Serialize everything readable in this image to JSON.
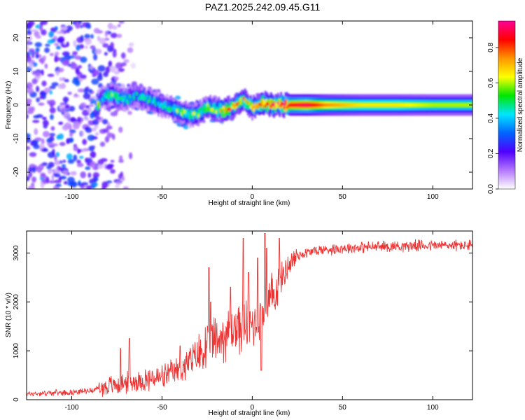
{
  "title": "PAZ1.2025.242.09.45.G11",
  "chart_data": [
    {
      "type": "heatmap",
      "title": "PAZ1.2025.242.09.45.G11",
      "xlabel": "Height of straight line (km)",
      "ylabel": "Frequency (Hz)",
      "xlim": [
        -125,
        122
      ],
      "ylim": [
        -25,
        25
      ],
      "xticks": [
        -100,
        -50,
        0,
        50,
        100
      ],
      "yticks": [
        -20,
        -10,
        0,
        10,
        20
      ],
      "grid": false,
      "colorbar": {
        "label": "Normalized spectral amplitude",
        "range": [
          0,
          0.95
        ],
        "ticks": [
          0.0,
          0.2,
          0.4,
          0.6,
          0.8
        ],
        "colors": [
          "#ffffff",
          "#b478ff",
          "#5000ff",
          "#0064ff",
          "#00e6ff",
          "#00e600",
          "#ffff00",
          "#ff9600",
          "#ff0000",
          "#ff0096"
        ]
      },
      "ridge": [
        {
          "x": -85,
          "f": 1.5,
          "a": 0.3
        },
        {
          "x": -80,
          "f": 3.0,
          "a": 0.5
        },
        {
          "x": -75,
          "f": 2.5,
          "a": 0.5
        },
        {
          "x": -70,
          "f": 1.5,
          "a": 0.45
        },
        {
          "x": -65,
          "f": 3.0,
          "a": 0.4
        },
        {
          "x": -60,
          "f": 2.0,
          "a": 0.45
        },
        {
          "x": -55,
          "f": 1.0,
          "a": 0.45
        },
        {
          "x": -50,
          "f": 0.0,
          "a": 0.4
        },
        {
          "x": -45,
          "f": -1.0,
          "a": 0.45
        },
        {
          "x": -40,
          "f": -2.0,
          "a": 0.55
        },
        {
          "x": -35,
          "f": -3.0,
          "a": 0.5
        },
        {
          "x": -30,
          "f": -2.5,
          "a": 0.5
        },
        {
          "x": -25,
          "f": -0.5,
          "a": 0.55
        },
        {
          "x": -20,
          "f": -1.5,
          "a": 0.6
        },
        {
          "x": -15,
          "f": -1.5,
          "a": 0.7
        },
        {
          "x": -10,
          "f": 0.0,
          "a": 0.65
        },
        {
          "x": -5,
          "f": 1.5,
          "a": 0.65
        },
        {
          "x": 0,
          "f": -1.0,
          "a": 0.7
        },
        {
          "x": 5,
          "f": 0.5,
          "a": 0.75
        },
        {
          "x": 10,
          "f": 0.0,
          "a": 0.8
        },
        {
          "x": 15,
          "f": 0.0,
          "a": 0.85
        },
        {
          "x": 20,
          "f": 0.0,
          "a": 0.85
        },
        {
          "x": 30,
          "f": 0.0,
          "a": 0.9
        },
        {
          "x": 40,
          "f": 0.0,
          "a": 0.75
        },
        {
          "x": 60,
          "f": 0.0,
          "a": 0.65
        },
        {
          "x": 80,
          "f": 0.0,
          "a": 0.65
        },
        {
          "x": 100,
          "f": 0.0,
          "a": 0.6
        },
        {
          "x": 122,
          "f": 0.0,
          "a": 0.6
        }
      ],
      "noise_region": {
        "x_from": -125,
        "x_to": -85,
        "f_range": [
          -25,
          25
        ],
        "a_range": [
          0.05,
          0.3
        ]
      }
    },
    {
      "type": "line",
      "xlabel": "Height of straight line (km)",
      "ylabel": "SNR (10 * v/v)",
      "xlim": [
        -125,
        122
      ],
      "ylim": [
        0,
        3450
      ],
      "xticks": [
        -100,
        -50,
        0,
        50,
        100
      ],
      "yticks": [
        0,
        1000,
        2000,
        3000
      ],
      "grid": false,
      "series": [
        {
          "name": "SNR",
          "color": "#ee3333",
          "trend": [
            {
              "x": -125,
              "y": 120
            },
            {
              "x": -110,
              "y": 140
            },
            {
              "x": -100,
              "y": 150
            },
            {
              "x": -90,
              "y": 190
            },
            {
              "x": -80,
              "y": 270
            },
            {
              "x": -70,
              "y": 350
            },
            {
              "x": -60,
              "y": 400
            },
            {
              "x": -50,
              "y": 450
            },
            {
              "x": -40,
              "y": 620
            },
            {
              "x": -30,
              "y": 900
            },
            {
              "x": -20,
              "y": 1200
            },
            {
              "x": -10,
              "y": 1450
            },
            {
              "x": 0,
              "y": 1550
            },
            {
              "x": 5,
              "y": 1700
            },
            {
              "x": 10,
              "y": 2000
            },
            {
              "x": 15,
              "y": 2400
            },
            {
              "x": 20,
              "y": 2750
            },
            {
              "x": 25,
              "y": 2950
            },
            {
              "x": 35,
              "y": 3050
            },
            {
              "x": 50,
              "y": 3100
            },
            {
              "x": 70,
              "y": 3130
            },
            {
              "x": 90,
              "y": 3150
            },
            {
              "x": 110,
              "y": 3160
            },
            {
              "x": 122,
              "y": 3150
            }
          ],
          "peaks": [
            {
              "x": -73,
              "y": 1050
            },
            {
              "x": -68,
              "y": 1250
            },
            {
              "x": -40,
              "y": 1100
            },
            {
              "x": -24,
              "y": 2700
            },
            {
              "x": -23,
              "y": 2000
            },
            {
              "x": -12,
              "y": 2300
            },
            {
              "x": -5,
              "y": 3300
            },
            {
              "x": -2,
              "y": 2600
            },
            {
              "x": 7,
              "y": 3400
            },
            {
              "x": 8,
              "y": 3100
            },
            {
              "x": 15,
              "y": 3300
            },
            {
              "x": 5,
              "y": 600
            },
            {
              "x": 3,
              "y": 2900
            }
          ]
        }
      ]
    }
  ]
}
